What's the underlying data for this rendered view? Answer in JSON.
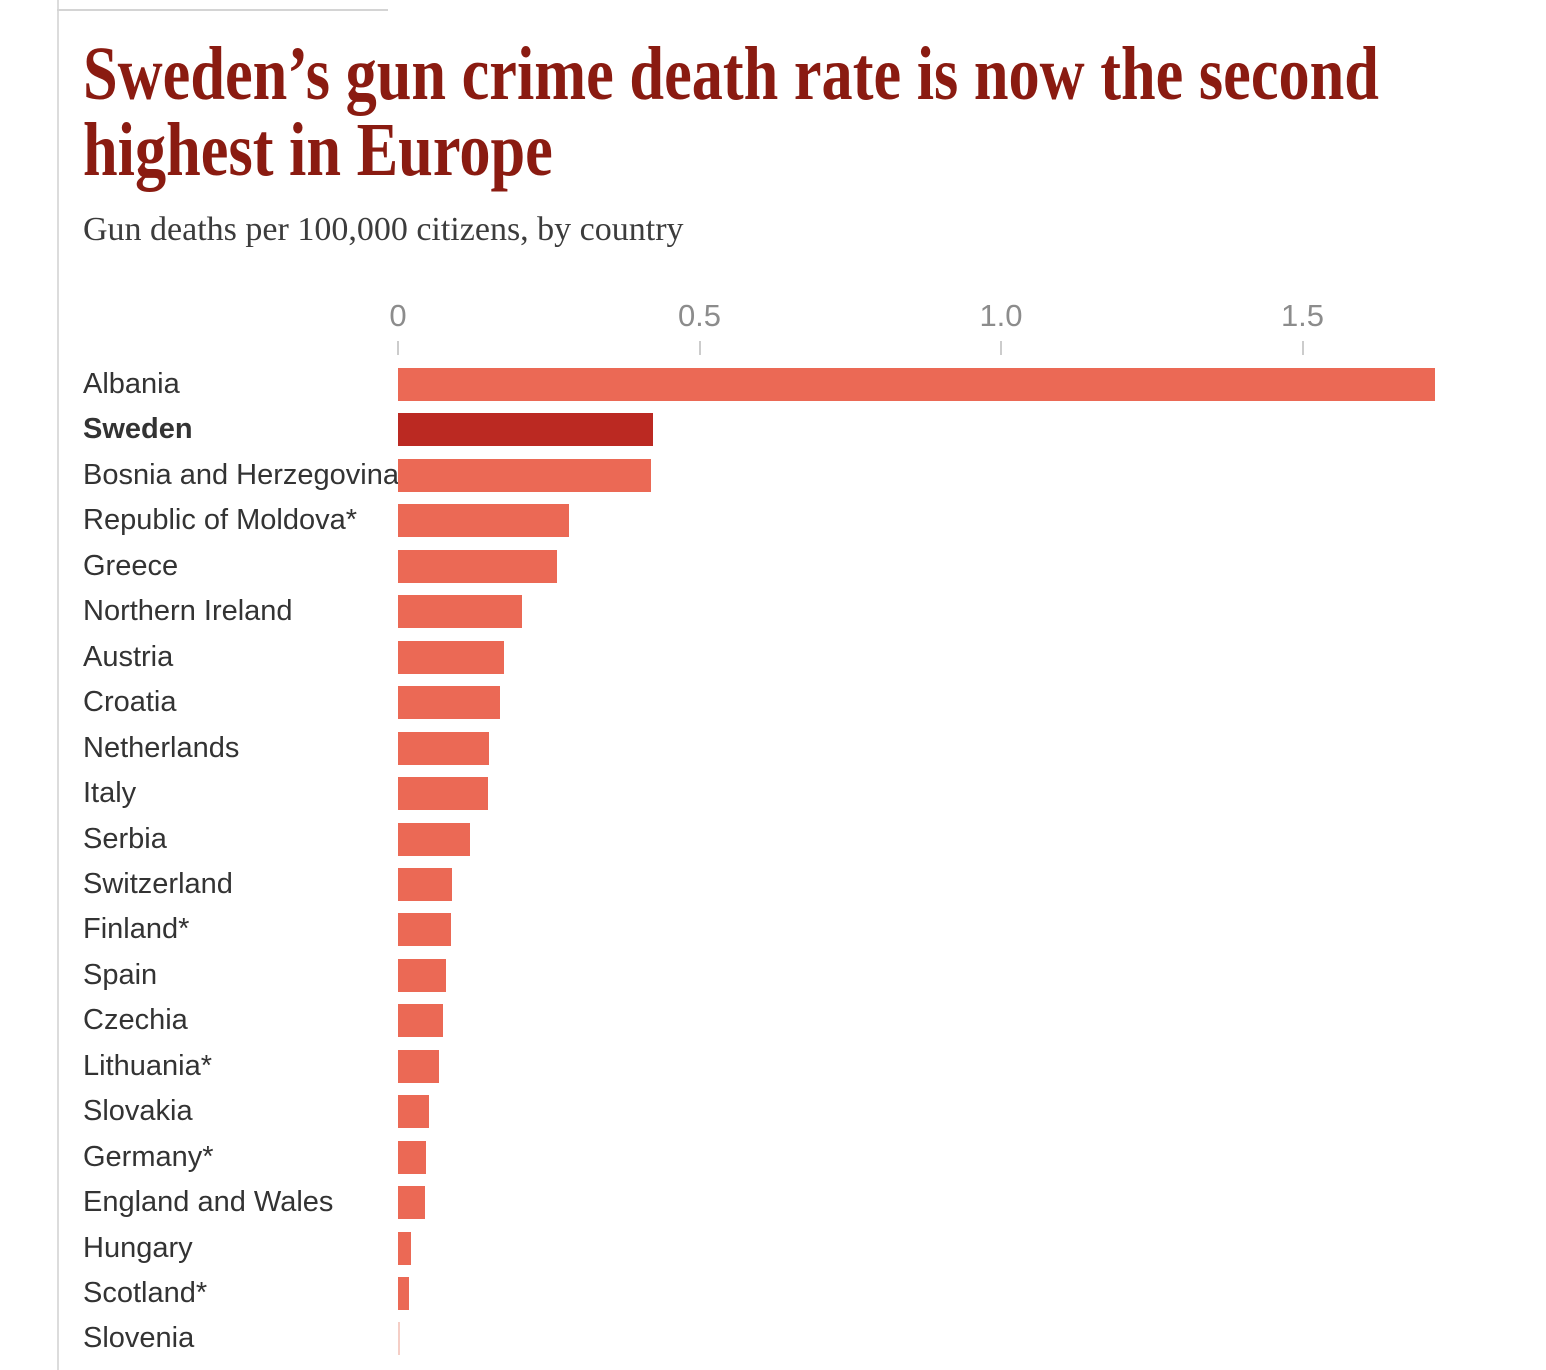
{
  "header": {
    "title": "Sweden’s gun crime death rate is now the second highest in Europe",
    "title_lines": [
      "Sweden’s gun crime death rate is now the second",
      "highest in Europe"
    ],
    "subtitle": "Gun deaths per 100,000 citizens, by country"
  },
  "chart_data": {
    "type": "bar",
    "orientation": "horizontal",
    "title": "Sweden’s gun crime death rate is now the second highest in Europe",
    "subtitle": "Gun deaths per 100,000 citizens, by country",
    "categories": [
      "Albania",
      "Sweden",
      "Bosnia and Herzegovina",
      "Republic of Moldova*",
      "Greece",
      "Northern Ireland",
      "Austria",
      "Croatia",
      "Netherlands",
      "Italy",
      "Serbia",
      "Switzerland",
      "Finland*",
      "Spain",
      "Czechia",
      "Lithuania*",
      "Slovakia",
      "Germany*",
      "England and Wales",
      "Hungary",
      "Scotland*",
      "Slovenia"
    ],
    "values": [
      1.72,
      0.423,
      0.419,
      0.283,
      0.263,
      0.206,
      0.176,
      0.169,
      0.151,
      0.149,
      0.119,
      0.09,
      0.088,
      0.08,
      0.075,
      0.068,
      0.051,
      0.046,
      0.045,
      0.021,
      0.019,
      0.002
    ],
    "highlight_category": "Sweden",
    "axis": {
      "position": "top",
      "ticks": [
        0,
        0.5,
        1.0,
        1.5
      ],
      "tick_labels": [
        "0",
        "0.5",
        "1.0",
        "1.5"
      ],
      "range": [
        0,
        1.75
      ]
    },
    "grid": false,
    "legend": false,
    "colors": {
      "bar": "#eb6955",
      "highlight_bar": "#bb2922",
      "tiny_bar": "#f5cec6",
      "title": "#8a1b11",
      "subtitle": "#3c3c3c",
      "label": "#333333",
      "axis_text": "#8c8c8c",
      "tick": "#cccccc",
      "rule": "#dcdcdc"
    }
  }
}
